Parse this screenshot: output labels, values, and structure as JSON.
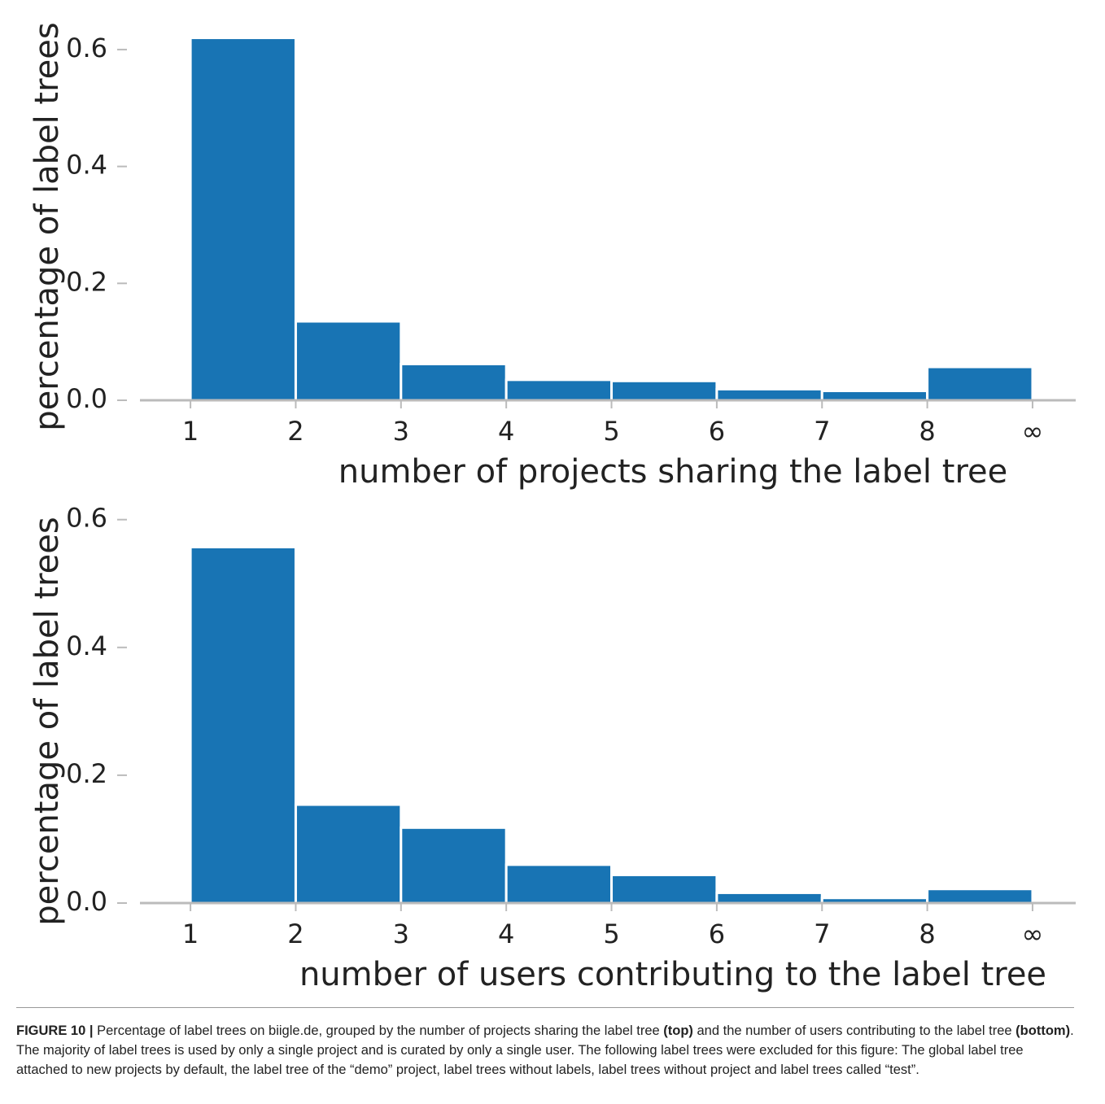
{
  "chart_data": [
    {
      "type": "histogram",
      "xlabel": "number of projects sharing the label tree",
      "ylabel": "percentage of label trees",
      "bins": [
        1,
        2,
        3,
        4,
        5,
        6,
        7,
        8,
        9
      ],
      "values": [
        0.62,
        0.135,
        0.062,
        0.035,
        0.033,
        0.019,
        0.016,
        0.057
      ],
      "color": "#1874b4",
      "xlim": [
        0.52,
        9.41
      ],
      "xticks": [
        1,
        2,
        3,
        4,
        5,
        6,
        7,
        8,
        {
          "value": 9,
          "label": "∞"
        }
      ],
      "ylim": [
        0,
        0.65
      ],
      "yticks": [
        {
          "value": 0,
          "label": "0.0"
        },
        0.2,
        0.4,
        0.6
      ]
    },
    {
      "type": "histogram",
      "xlabel": "number of users contributing to the label tree",
      "ylabel": "percentage of label trees",
      "bins": [
        1,
        2,
        3,
        4,
        5,
        6,
        7,
        8,
        9
      ],
      "values": [
        0.557,
        0.154,
        0.118,
        0.06,
        0.044,
        0.016,
        0.008,
        0.022
      ],
      "color": "#1874b4",
      "xlim": [
        0.52,
        9.41
      ],
      "xticks": [
        1,
        2,
        3,
        4,
        5,
        6,
        7,
        8,
        {
          "value": 9,
          "label": "∞"
        }
      ],
      "ylim": [
        0,
        0.62
      ],
      "yticks": [
        {
          "value": 0,
          "label": "0.0"
        },
        0.2,
        0.4,
        0.6
      ]
    }
  ],
  "caption": {
    "label": "FIGURE 10 |",
    "text1": " Percentage of label trees on biigle.de, grouped by the number of projects sharing the label tree ",
    "bold1": "(top)",
    "text2": " and the number of users contributing to the label tree ",
    "bold2": "(bottom)",
    "text3": ". The majority of label trees is used by only a single project and is curated by only a single user. The following label trees were excluded for this figure: The global label tree attached to new projects by default, the label tree of the “demo” project, label trees without labels, label trees without project and label trees called “test”."
  }
}
